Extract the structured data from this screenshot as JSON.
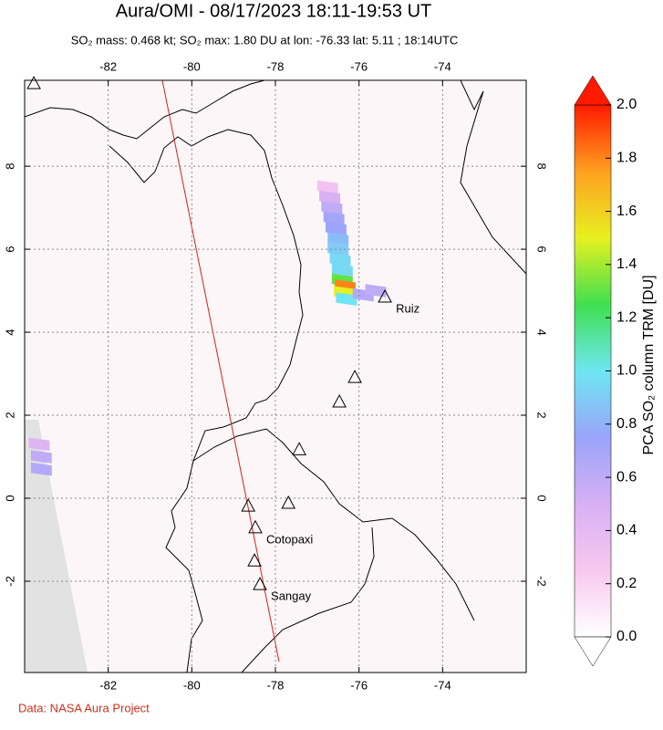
{
  "chart_data": {
    "type": "map",
    "title": "Aura/OMI - 08/17/2023 18:11-19:53 UT",
    "subtitle": "SO₂ mass: 0.468 kt; SO₂ max: 1.80 DU at lon: -76.33 lat: 5.11 ; 18:14UTC",
    "xlim": [
      -84,
      -72
    ],
    "ylim": [
      -4.2,
      10.07
    ],
    "xticks": [
      -82,
      -80,
      -78,
      -76,
      -74
    ],
    "yticks": [
      8,
      6,
      4,
      2,
      0,
      -2
    ],
    "grid": true,
    "colorbar": {
      "label": "PCA SO₂ column TRM [DU]",
      "lim": [
        0,
        2
      ],
      "ticks": [
        {
          "value": 0,
          "label": "0.0"
        },
        0.2,
        0.4,
        0.6,
        0.8,
        {
          "value": 1,
          "label": "1.0"
        },
        1.2,
        1.4,
        1.6,
        1.8,
        {
          "value": 2,
          "label": "2.0"
        }
      ],
      "colormap": [
        "#ffffff",
        "#f8c8f0",
        "#d8b0f4",
        "#9aa4fa",
        "#6ee6f2",
        "#40e050",
        "#e8f020",
        "#ffa020",
        "#ff1a00"
      ]
    },
    "cells": [
      {
        "lon": -76.75,
        "lat": 7.5,
        "value": 0.3
      },
      {
        "lon": -76.7,
        "lat": 7.25,
        "value": 0.5
      },
      {
        "lon": -76.65,
        "lat": 7.0,
        "value": 0.6
      },
      {
        "lon": -76.6,
        "lat": 6.75,
        "value": 0.7
      },
      {
        "lon": -76.55,
        "lat": 6.5,
        "value": 0.75
      },
      {
        "lon": -76.5,
        "lat": 6.25,
        "value": 0.85
      },
      {
        "lon": -76.5,
        "lat": 6.0,
        "value": 0.9
      },
      {
        "lon": -76.45,
        "lat": 5.75,
        "value": 0.95
      },
      {
        "lon": -76.4,
        "lat": 5.5,
        "value": 0.95
      },
      {
        "lon": -76.4,
        "lat": 5.25,
        "value": 1.3
      },
      {
        "lon": -76.33,
        "lat": 5.11,
        "value": 1.8
      },
      {
        "lon": -76.35,
        "lat": 4.95,
        "value": 1.5
      },
      {
        "lon": -76.3,
        "lat": 4.8,
        "value": 1.0
      },
      {
        "lon": -75.9,
        "lat": 4.9,
        "value": 0.65
      },
      {
        "lon": -75.6,
        "lat": 5.0,
        "value": 0.6
      },
      {
        "lon": -83.65,
        "lat": 1.3,
        "value": 0.45
      },
      {
        "lon": -83.6,
        "lat": 1.0,
        "value": 0.6
      },
      {
        "lon": -83.6,
        "lat": 0.7,
        "value": 0.65
      }
    ],
    "volcanoes": [
      {
        "name": null,
        "lon": -83.78,
        "lat": 10.0
      },
      {
        "name": "Ruiz",
        "lon": -75.38,
        "lat": 4.86
      },
      {
        "name": null,
        "lon": -76.1,
        "lat": 2.92
      },
      {
        "name": null,
        "lon": -76.47,
        "lat": 2.33
      },
      {
        "name": null,
        "lon": -77.43,
        "lat": 1.18
      },
      {
        "name": null,
        "lon": -77.69,
        "lat": -0.11
      },
      {
        "name": null,
        "lon": -78.65,
        "lat": -0.18
      },
      {
        "name": "Cotopaxi",
        "lon": -78.48,
        "lat": -0.7
      },
      {
        "name": null,
        "lon": -78.5,
        "lat": -1.5
      },
      {
        "name": "Sangay",
        "lon": -78.37,
        "lat": -2.07
      }
    ],
    "source": "Data: NASA Aura Project"
  }
}
